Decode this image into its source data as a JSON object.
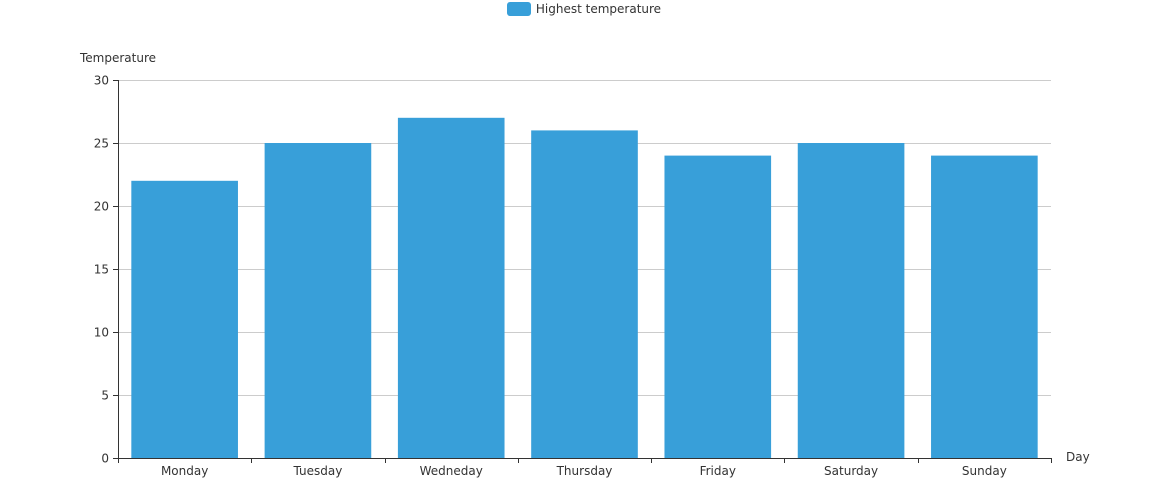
{
  "chart_data": {
    "type": "bar",
    "title": "",
    "legend": {
      "position": "top-center",
      "entries": [
        "Highest temperature"
      ]
    },
    "xlabel": "Day",
    "ylabel": "Temperature",
    "categories": [
      "Monday",
      "Tuesday",
      "Wedneday",
      "Thursday",
      "Friday",
      "Saturday",
      "Sunday"
    ],
    "series": [
      {
        "name": "Highest temperature",
        "color": "#389fd9",
        "values": [
          22,
          25,
          27,
          26,
          24,
          25,
          24
        ]
      }
    ],
    "ylim": [
      0,
      30
    ],
    "yticks": [
      0,
      5,
      10,
      15,
      20,
      25,
      30
    ],
    "grid": true
  }
}
